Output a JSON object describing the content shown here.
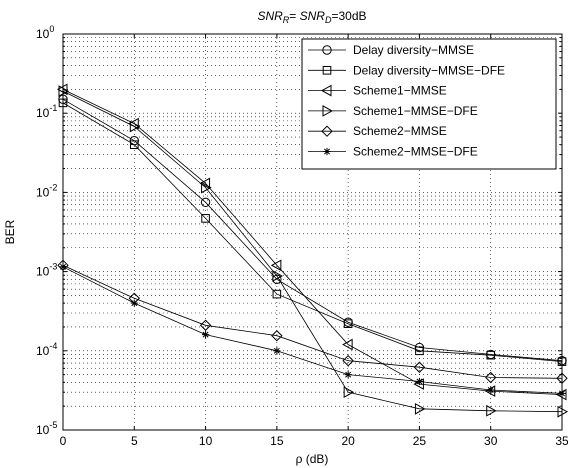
{
  "chart_data": {
    "type": "line",
    "title_parts": {
      "a": "SNR",
      "a_sub": "R",
      "eq1": "= ",
      "b": "SNR",
      "b_sub": "D",
      "eq2": "=30dB"
    },
    "xlabel": "ρ (dB)",
    "ylabel": "BER",
    "x": [
      0,
      5,
      10,
      15,
      20,
      25,
      30,
      35
    ],
    "xlim": [
      0,
      35
    ],
    "ylim": [
      1e-05,
      1
    ],
    "yscale": "log",
    "x_ticks": [
      "0",
      "5",
      "10",
      "15",
      "20",
      "25",
      "30",
      "35"
    ],
    "y_ticks": [
      {
        "base": "10",
        "exp": "-5",
        "value": 1e-05
      },
      {
        "base": "10",
        "exp": "-4",
        "value": 0.0001
      },
      {
        "base": "10",
        "exp": "-3",
        "value": 0.001
      },
      {
        "base": "10",
        "exp": "-2",
        "value": 0.01
      },
      {
        "base": "10",
        "exp": "-1",
        "value": 0.1
      },
      {
        "base": "10",
        "exp": "0",
        "value": 1
      }
    ],
    "grid": true,
    "legend_position": "top-right",
    "series": [
      {
        "name": "Delay diversity−MMSE",
        "marker": "circle",
        "values": [
          0.15,
          0.045,
          0.0075,
          0.0008,
          0.00023,
          0.00011,
          9e-05,
          7.5e-05
        ]
      },
      {
        "name": "Delay diversity−MMSE−DFE",
        "marker": "square",
        "values": [
          0.135,
          0.04,
          0.0047,
          0.00052,
          0.00022,
          0.0001,
          8.8e-05,
          7.3e-05
        ]
      },
      {
        "name": "Scheme1−MMSE",
        "marker": "triangle-left",
        "values": [
          0.2,
          0.074,
          0.013,
          0.0012,
          0.00012,
          3.8e-05,
          3.1e-05,
          2.8e-05
        ]
      },
      {
        "name": "Scheme1−MMSE−DFE",
        "marker": "triangle-right",
        "values": [
          0.19,
          0.068,
          0.0115,
          0.00088,
          3e-05,
          1.85e-05,
          1.75e-05,
          1.7e-05
        ]
      },
      {
        "name": "Scheme2−MMSE",
        "marker": "diamond",
        "values": [
          0.0012,
          0.00046,
          0.00021,
          0.000155,
          7.5e-05,
          6.2e-05,
          4.6e-05,
          4.5e-05
        ]
      },
      {
        "name": "Scheme2−MMSE−DFE",
        "marker": "star",
        "values": [
          0.00115,
          0.0004,
          0.00016,
          0.0001,
          5e-05,
          4.1e-05,
          3.2e-05,
          2.9e-05
        ]
      }
    ]
  }
}
